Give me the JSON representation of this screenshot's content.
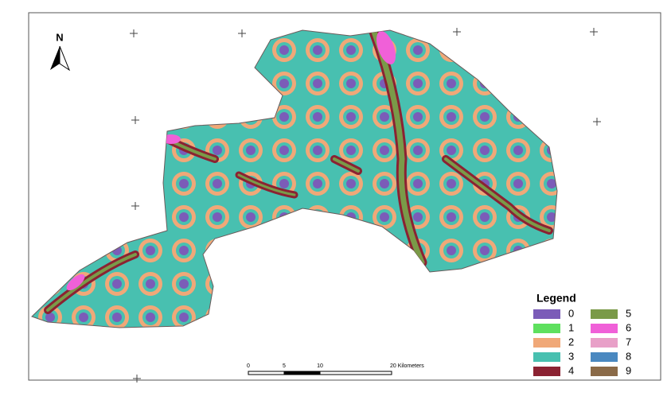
{
  "map": {
    "north_label": "N",
    "legend": {
      "title": "Legend",
      "items": [
        {
          "label": "0",
          "color": "#7b5cb8"
        },
        {
          "label": "1",
          "color": "#5ee05e"
        },
        {
          "label": "2",
          "color": "#f0a878"
        },
        {
          "label": "3",
          "color": "#48c0b0"
        },
        {
          "label": "4",
          "color": "#8b2232"
        },
        {
          "label": "5",
          "color": "#7a9a48"
        },
        {
          "label": "6",
          "color": "#f060d8"
        },
        {
          "label": "7",
          "color": "#e8a0c8"
        },
        {
          "label": "8",
          "color": "#4a88c0"
        },
        {
          "label": "9",
          "color": "#8a6a48"
        }
      ]
    },
    "scale_bar": {
      "labels": [
        "0",
        "5",
        "10",
        "20 Kilometers"
      ]
    }
  }
}
